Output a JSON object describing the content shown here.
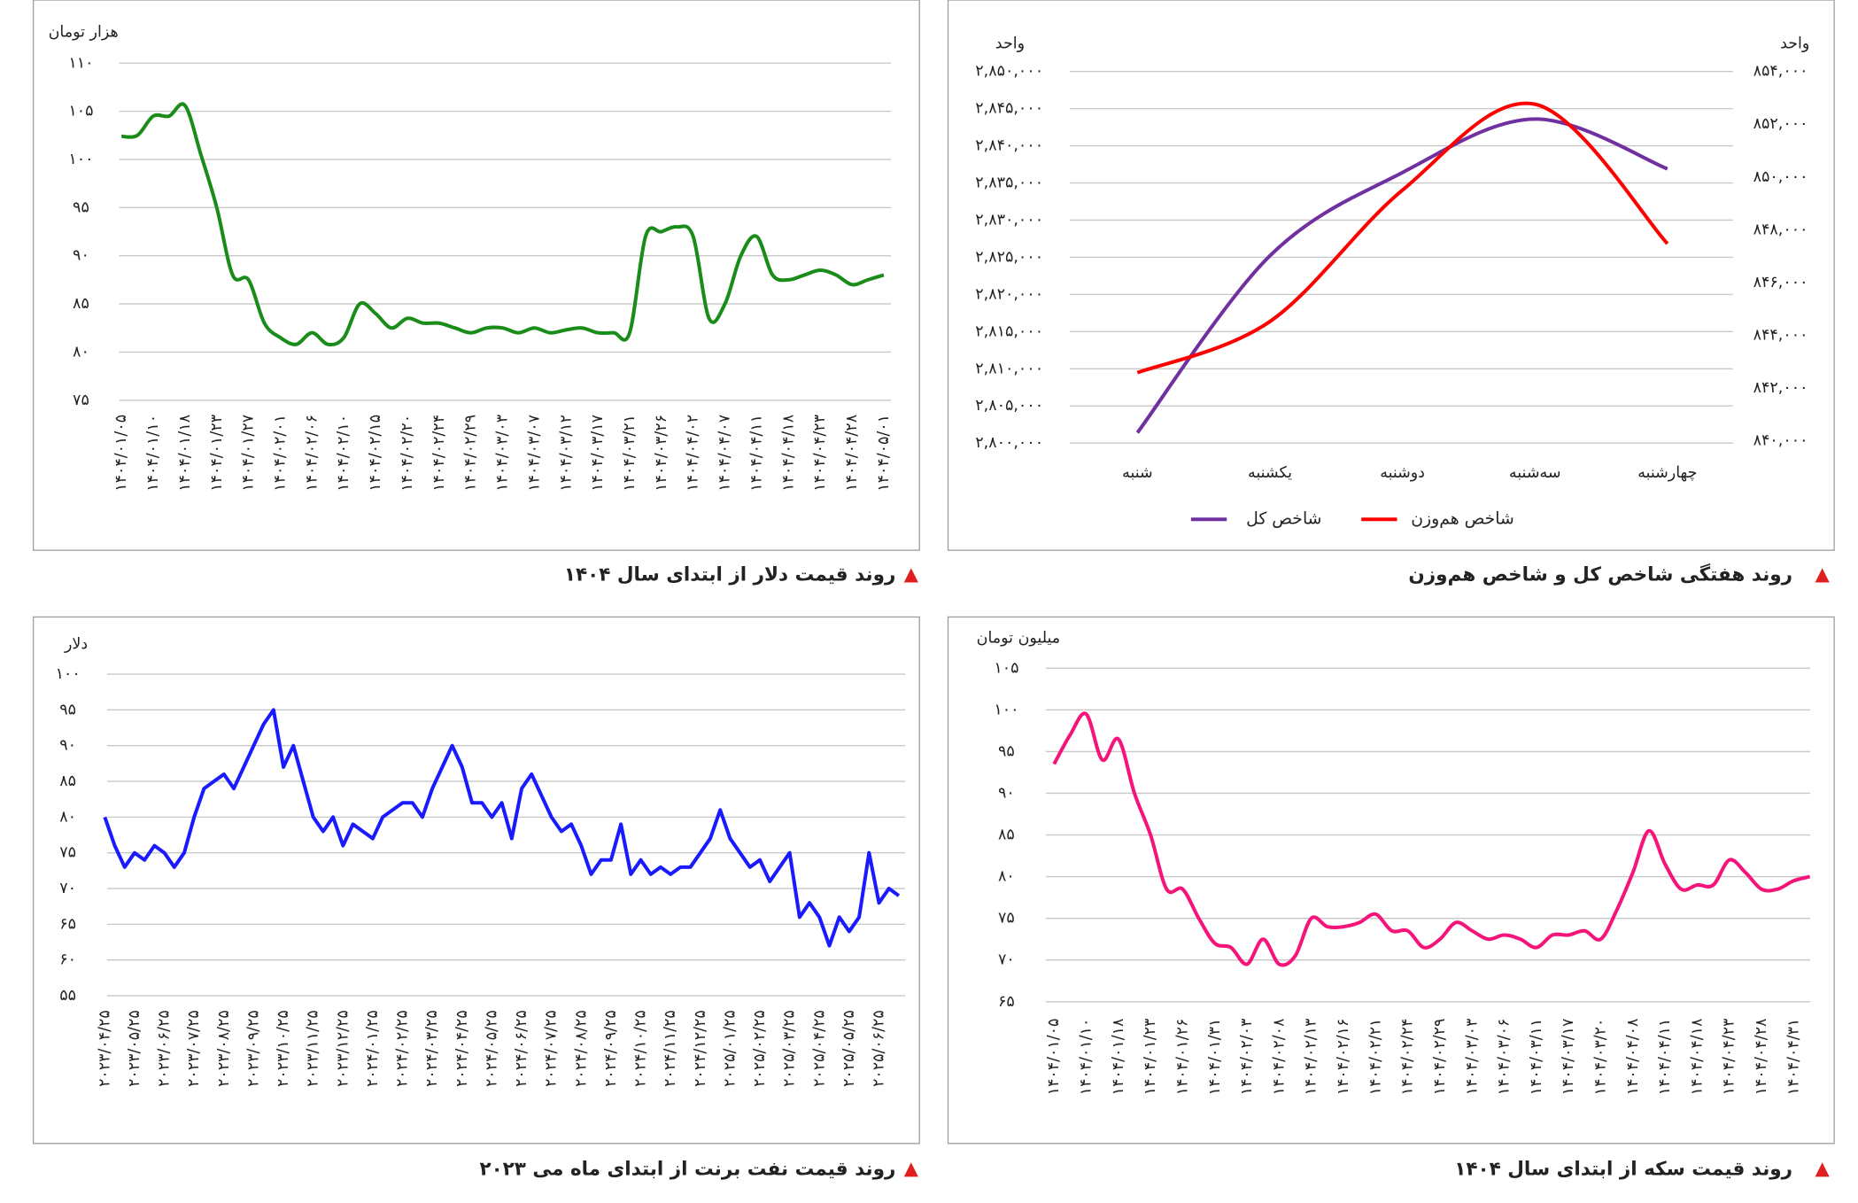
{
  "chart_data": [
    {
      "type": "line",
      "title": "روند قیمت دلار از ابتدای سال ۱۴۰۴",
      "ylabel": "هزار تومان",
      "color": "#1a8c1a",
      "smooth": true,
      "grid": true,
      "categories": [
        "۱۴۰۴/۰۱/۰۵",
        null,
        "۱۴۰۴/۰۱/۱۰",
        null,
        "۱۴۰۴/۰۱/۱۸",
        null,
        "۱۴۰۴/۰۱/۲۳",
        null,
        "۱۴۰۴/۰۱/۲۷",
        null,
        "۱۴۰۴/۰۲/۰۱",
        null,
        "۱۴۰۴/۰۲/۰۶",
        null,
        "۱۴۰۴/۰۲/۱۰",
        null,
        "۱۴۰۴/۰۲/۱۵",
        null,
        "۱۴۰۴/۰۲/۲۰",
        null,
        "۱۴۰۴/۰۲/۲۴",
        null,
        "۱۴۰۴/۰۲/۲۹",
        null,
        "۱۴۰۴/۰۳/۰۳",
        null,
        "۱۴۰۴/۰۳/۰۷",
        null,
        "۱۴۰۴/۰۳/۱۲",
        null,
        "۱۴۰۴/۰۳/۱۷",
        null,
        "۱۴۰۴/۰۳/۲۱",
        null,
        "۱۴۰۴/۰۳/۲۶",
        null,
        "۱۴۰۴/۰۴/۰۲",
        null,
        "۱۴۰۴/۰۴/۰۷",
        null,
        "۱۴۰۴/۰۴/۱۱",
        null,
        "۱۴۰۴/۰۴/۱۸",
        null,
        "۱۴۰۴/۰۴/۲۳",
        null,
        "۱۴۰۴/۰۴/۲۸",
        null,
        "۱۴۰۴/۰۵/۰۱"
      ],
      "values": [
        102.4,
        102.5,
        104.5,
        104.5,
        105.6,
        100.5,
        95,
        88,
        87.5,
        83,
        81.5,
        80.8,
        82,
        80.8,
        81.5,
        85,
        84,
        82.5,
        83.5,
        83,
        83,
        82.5,
        82,
        82.5,
        82.5,
        82,
        82.5,
        82,
        82.3,
        82.5,
        82,
        82,
        82,
        92,
        92.5,
        93,
        92,
        83.5,
        85,
        90,
        92,
        88,
        87.5,
        88,
        88.5,
        88,
        87,
        87.5,
        88
      ],
      "ylim": [
        75,
        110
      ],
      "yticks": [
        {
          "value": 75,
          "label": "۷۵"
        },
        {
          "value": 80,
          "label": "۸۰"
        },
        {
          "value": 85,
          "label": "۸۵"
        },
        {
          "value": 90,
          "label": "۹۰"
        },
        {
          "value": 95,
          "label": "۹۵"
        },
        {
          "value": 100,
          "label": "۱۰۰"
        },
        {
          "value": 105,
          "label": "۱۰۵"
        },
        {
          "value": 110,
          "label": "۱۱۰"
        }
      ]
    },
    {
      "type": "line",
      "title": "روند هفتگی شاخص کل و شاخص هم‌وزن",
      "ylabel": "واحد",
      "y2label": "واحد",
      "smooth": true,
      "grid": true,
      "legend": "bottom",
      "categories": [
        "شنبه",
        "یکشنبه",
        "دوشنبه",
        "سه‌شنبه",
        "چهارشنبه"
      ],
      "series": [
        {
          "name": "شاخص کل",
          "color": "#7030a0",
          "values": [
            2801400,
            2825200,
            2836400,
            2843600,
            2836900
          ]
        },
        {
          "name": "شاخص هم‌وزن",
          "color": "#ff0000",
          "axis": "y2",
          "values": [
            842580,
            844520,
            849500,
            852760,
            847470
          ]
        }
      ],
      "ylim": [
        2800000,
        2850000
      ],
      "yticks": [
        {
          "value": 2800000,
          "label": "۲,۸۰۰,۰۰۰"
        },
        {
          "value": 2805000,
          "label": "۲,۸۰۵,۰۰۰"
        },
        {
          "value": 2810000,
          "label": "۲,۸۱۰,۰۰۰"
        },
        {
          "value": 2815000,
          "label": "۲,۸۱۵,۰۰۰"
        },
        {
          "value": 2820000,
          "label": "۲,۸۲۰,۰۰۰"
        },
        {
          "value": 2825000,
          "label": "۲,۸۲۵,۰۰۰"
        },
        {
          "value": 2830000,
          "label": "۲,۸۳۰,۰۰۰"
        },
        {
          "value": 2835000,
          "label": "۲,۸۳۵,۰۰۰"
        },
        {
          "value": 2840000,
          "label": "۲,۸۴۰,۰۰۰"
        },
        {
          "value": 2845000,
          "label": "۲,۸۴۵,۰۰۰"
        },
        {
          "value": 2850000,
          "label": "۲,۸۵۰,۰۰۰"
        }
      ],
      "y2lim": [
        840000,
        854000
      ],
      "y2ticks": [
        {
          "value": 840000,
          "label": "۸۴۰,۰۰۰"
        },
        {
          "value": 842000,
          "label": "۸۴۲,۰۰۰"
        },
        {
          "value": 844000,
          "label": "۸۴۴,۰۰۰"
        },
        {
          "value": 846000,
          "label": "۸۴۶,۰۰۰"
        },
        {
          "value": 848000,
          "label": "۸۴۸,۰۰۰"
        },
        {
          "value": 850000,
          "label": "۸۵۰,۰۰۰"
        },
        {
          "value": 852000,
          "label": "۸۵۲,۰۰۰"
        },
        {
          "value": 854000,
          "label": "۸۵۴,۰۰۰"
        }
      ]
    },
    {
      "type": "line",
      "title": "روند قیمت نفت برنت از ابتدای ماه می ۲۰۲۳",
      "ylabel": "دلار",
      "color": "#1a1aff",
      "smooth": false,
      "grid": true,
      "categories": [
        "۲۰۲۳/۰۴/۲۵",
        null,
        null,
        "۲۰۲۳/۰۵/۲۵",
        null,
        null,
        "۲۰۲۳/۰۶/۲۵",
        null,
        null,
        "۲۰۲۳/۰۷/۲۵",
        null,
        null,
        "۲۰۲۳/۰۸/۲۵",
        null,
        null,
        "۲۰۲۳/۰۹/۲۵",
        null,
        null,
        "۲۰۲۳/۱۰/۲۵",
        null,
        null,
        "۲۰۲۳/۱۱/۲۵",
        null,
        null,
        "۲۰۲۳/۱۲/۲۵",
        null,
        null,
        "۲۰۲۴/۰۱/۲۵",
        null,
        null,
        "۲۰۲۴/۰۲/۲۵",
        null,
        null,
        "۲۰۲۴/۰۳/۲۵",
        null,
        null,
        "۲۰۲۴/۰۴/۲۵",
        null,
        null,
        "۲۰۲۴/۰۵/۲۵",
        null,
        null,
        "۲۰۲۴/۰۶/۲۵",
        null,
        null,
        "۲۰۲۴/۰۷/۲۵",
        null,
        null,
        "۲۰۲۴/۰۸/۲۵",
        null,
        null,
        "۲۰۲۴/۰۹/۲۵",
        null,
        null,
        "۲۰۲۴/۱۰/۲۵",
        null,
        null,
        "۲۰۲۴/۱۱/۲۵",
        null,
        null,
        "۲۰۲۴/۱۲/۲۵",
        null,
        null,
        "۲۰۲۵/۰۱/۲۵",
        null,
        null,
        "۲۰۲۵/۰۲/۲۵",
        null,
        null,
        "۲۰۲۵/۰۳/۲۵",
        null,
        null,
        "۲۰۲۵/۰۴/۲۵",
        null,
        null,
        "۲۰۲۵/۰۵/۲۵",
        null,
        null,
        "۲۰۲۵/۰۶/۲۵",
        null,
        null
      ],
      "values": [
        80,
        76,
        73,
        75,
        74,
        76,
        75,
        73,
        75,
        80,
        84,
        85,
        86,
        84,
        87,
        90,
        93,
        95,
        87,
        90,
        85,
        80,
        78,
        80,
        76,
        79,
        78,
        77,
        80,
        81,
        82,
        82,
        80,
        84,
        87,
        90,
        87,
        82,
        82,
        80,
        82,
        77,
        84,
        86,
        83,
        80,
        78,
        79,
        76,
        72,
        74,
        74,
        79,
        72,
        74,
        72,
        73,
        72,
        73,
        73,
        75,
        77,
        81,
        77,
        75,
        73,
        74,
        71,
        73,
        75,
        66,
        68,
        66,
        62,
        66,
        64,
        66,
        75,
        68,
        70,
        69
      ],
      "ylim": [
        55,
        100
      ],
      "yticks": [
        {
          "value": 55,
          "label": "۵۵"
        },
        {
          "value": 60,
          "label": "۶۰"
        },
        {
          "value": 65,
          "label": "۶۵"
        },
        {
          "value": 70,
          "label": "۷۰"
        },
        {
          "value": 75,
          "label": "۷۵"
        },
        {
          "value": 80,
          "label": "۸۰"
        },
        {
          "value": 85,
          "label": "۸۵"
        },
        {
          "value": 90,
          "label": "۹۰"
        },
        {
          "value": 95,
          "label": "۹۵"
        },
        {
          "value": 100,
          "label": "۱۰۰"
        }
      ]
    },
    {
      "type": "line",
      "title": "روند قیمت سکه از ابتدای سال ۱۴۰۴",
      "ylabel": "میلیون تومان",
      "color": "#f5157a",
      "smooth": true,
      "grid": true,
      "categories": [
        "۱۴۰۴/۰۱/۰۵",
        null,
        "۱۴۰۴/۰۱/۱۰",
        null,
        "۱۴۰۴/۰۱/۱۸",
        null,
        "۱۴۰۴/۰۱/۲۳",
        null,
        "۱۴۰۴/۰۱/۲۶",
        null,
        "۱۴۰۴/۰۱/۳۱",
        null,
        "۱۴۰۴/۰۲/۰۳",
        null,
        "۱۴۰۴/۰۲/۰۸",
        null,
        "۱۴۰۴/۰۲/۱۳",
        null,
        "۱۴۰۴/۰۲/۱۶",
        null,
        "۱۴۰۴/۰۲/۲۱",
        null,
        "۱۴۰۴/۰۲/۲۴",
        null,
        "۱۴۰۴/۰۲/۲۹",
        null,
        "۱۴۰۴/۰۳/۰۳",
        null,
        "۱۴۰۴/۰۳/۰۶",
        null,
        "۱۴۰۴/۰۳/۱۱",
        null,
        "۱۴۰۴/۰۳/۱۷",
        null,
        "۱۴۰۴/۰۳/۲۰",
        null,
        "۱۴۰۴/۰۴/۰۸",
        null,
        "۱۴۰۴/۰۴/۱۱",
        null,
        "۱۴۰۴/۰۴/۱۸",
        null,
        "۱۴۰۴/۰۴/۲۳",
        null,
        "۱۴۰۴/۰۴/۲۸",
        null,
        "۱۴۰۴/۰۴/۳۱",
        null
      ],
      "values": [
        93.5,
        97,
        99.5,
        94,
        96.5,
        90,
        85,
        78.5,
        78.5,
        75,
        72,
        71.5,
        69.5,
        72.5,
        69.5,
        70.5,
        75,
        74,
        74,
        74.5,
        75.5,
        73.5,
        73.5,
        71.5,
        72.5,
        74.5,
        73.5,
        72.5,
        73,
        72.5,
        71.5,
        73,
        73,
        73.5,
        72.5,
        76,
        80.5,
        85.5,
        81.5,
        78.5,
        79,
        79,
        82,
        80.5,
        78.5,
        78.5,
        79.5,
        80
      ],
      "ylim": [
        65,
        105
      ],
      "yticks": [
        {
          "value": 65,
          "label": "۶۵"
        },
        {
          "value": 70,
          "label": "۷۰"
        },
        {
          "value": 75,
          "label": "۷۵"
        },
        {
          "value": 80,
          "label": "۸۰"
        },
        {
          "value": 85,
          "label": "۸۵"
        },
        {
          "value": 90,
          "label": "۹۰"
        },
        {
          "value": 95,
          "label": "۹۵"
        },
        {
          "value": 100,
          "label": "۱۰۰"
        },
        {
          "value": 105,
          "label": "۱۰۵"
        }
      ]
    }
  ]
}
